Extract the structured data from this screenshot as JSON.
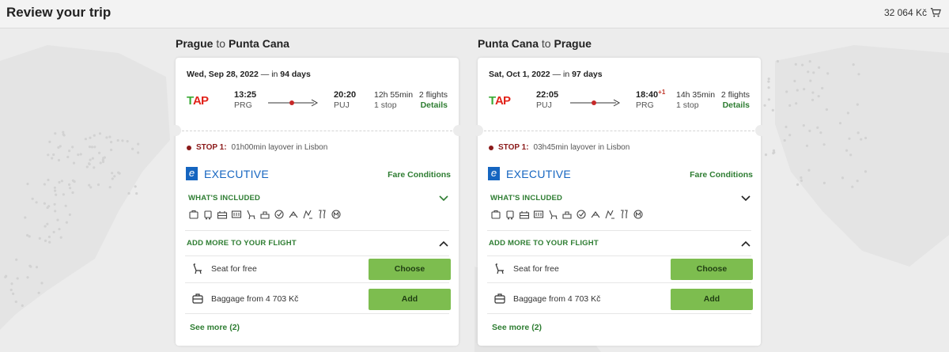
{
  "header": {
    "title": "Review your trip",
    "price": "32 064 Kč",
    "cart_icon": "cart-icon"
  },
  "outbound": {
    "from": "Prague",
    "connector": "to",
    "to": "Punta Cana",
    "date": "Wed, Sep 28, 2022",
    "dash": "— in",
    "days": "94 days",
    "airline_logo": "TAP",
    "dep_time": "13:25",
    "dep_code": "PRG",
    "arr_time": "20:20",
    "arr_plus": "",
    "arr_code": "PUJ",
    "duration": "12h 55min",
    "stops": "1 stop",
    "flights": "2 flights",
    "details_label": "Details",
    "stop_label": "STOP 1:",
    "stop_text": "01h00min layover in Lisbon",
    "fare_class": "EXECUTIVE",
    "fare_conditions": "Fare Conditions",
    "whats_included": "WHAT'S INCLUDED",
    "add_more": "ADD MORE TO YOUR FLIGHT",
    "seat_text": "Seat for free",
    "seat_button": "Choose",
    "baggage_text": "Baggage from 4 703 Kč",
    "baggage_button": "Add",
    "see_more": "See more (2)"
  },
  "inbound": {
    "from": "Punta Cana",
    "connector": "to",
    "to": "Prague",
    "date": "Sat, Oct 1, 2022",
    "dash": "— in",
    "days": "97 days",
    "airline_logo": "TAP",
    "dep_time": "22:05",
    "dep_code": "PUJ",
    "arr_time": "18:40",
    "arr_plus": "+1",
    "arr_code": "PRG",
    "duration": "14h 35min",
    "stops": "1 stop",
    "flights": "2 flights",
    "details_label": "Details",
    "stop_label": "STOP 1:",
    "stop_text": "03h45min layover in Lisbon",
    "fare_class": "EXECUTIVE",
    "fare_conditions": "Fare Conditions",
    "whats_included": "WHAT'S INCLUDED",
    "add_more": "ADD MORE TO YOUR FLIGHT",
    "seat_text": "Seat for free",
    "seat_button": "Choose",
    "baggage_text": "Baggage from 4 703 Kč",
    "baggage_button": "Add",
    "see_more": "See more (2)"
  },
  "included_icons": [
    "cabin-bag-icon",
    "trolley-bag-icon",
    "checked-bag-icon",
    "meal-icon",
    "seat-icon",
    "lounge-icon",
    "priority-icon",
    "flexible-change-icon",
    "refund-icon",
    "drinks-icon",
    "miles-icon"
  ],
  "colors": {
    "accent_green": "#2e7d32",
    "button_green": "#7dbd4f",
    "executive_blue": "#1565c0",
    "stop_red": "#8b1a1a"
  }
}
